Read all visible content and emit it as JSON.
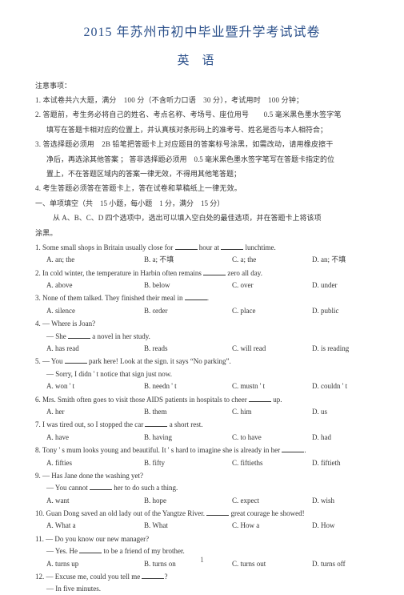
{
  "title_main": "2015 年苏州市初中毕业暨升学考试试卷",
  "title_sub": "英语",
  "notice_head": "注意事项：",
  "notice": [
    "1. 本试卷共六大题，满分　100 分（不含听力口语　30 分），考试用时　100 分钟；",
    "2. 答题前，考生务必将自己的姓名、考点名称、考场号、座位用号　　0.5 毫米黑色墨水签字笔",
    "填写在答题卡相对应的位置上，并认真核对条形码上的准考号、姓名是否与本人相符合；",
    "3. 答选择题必须用　2B 铅笔把答题卡上对应题目的答案标号涂黑，如需改动，请用橡皮擦干",
    "净后，再选涂其他答案 ； 答非选择题必须用　0.5 毫米黑色墨水签字笔写在答题卡指定的位",
    "置上，不在答题区域内的答案一律无效，不得用其他笔答题；",
    "4. 考生答题必须答在答题卡上，答在试卷和草稿纸上一律无效。"
  ],
  "section1": "一、单项填空（共　15 小题，每小题　1 分，满分　15 分）",
  "section1_sub": "从 A、B、C、D 四个选项中，选出可以填入空白处的最佳选项，并在答题卡上将该项",
  "section1_sub2": "涂黑。",
  "q": [
    {
      "n": "1.",
      "t": "Some small shops in Britain usually close for",
      "t2": "hour at",
      "t3": "lunchtime.",
      "A": "A. an; the",
      "B": "B. a; 不填",
      "C": "C. a; the",
      "D": "D. an; 不填"
    },
    {
      "n": "2.",
      "t": "In cold winter, the temperature in Harbin often remains",
      "t2": "zero all day.",
      "A": "A. above",
      "B": "B. below",
      "C": "C. over",
      "D": "D. under"
    },
    {
      "n": "3.",
      "t": "None of them talked. They finished their meal in",
      "t2": ".",
      "A": "A. silence",
      "B": "B. order",
      "C": "C. place",
      "D": "D. public"
    },
    {
      "n": "4.",
      "t": "— Where is Joan?",
      "s": "— She",
      "s2": "a novel in her study.",
      "A": "A. has read",
      "B": "B. reads",
      "C": "C. will read",
      "D": "D. is reading"
    },
    {
      "n": "5.",
      "t": "— You",
      "t2": "park here! Look at the sign. it says",
      "t3": "“No parking”.",
      "s": "— Sorry, I didn ' t notice that sign just now.",
      "A": "A. won ' t",
      "B": "B. needn ' t",
      "C": "C. mustn ' t",
      "D": "D. couldn ' t"
    },
    {
      "n": "6.",
      "t": "Mrs. Smith often goes to visit those AIDS patients in hospitals to cheer",
      "t2": "up.",
      "A": "A. her",
      "B": "B. them",
      "C": "C. him",
      "D": "D. us"
    },
    {
      "n": "7.",
      "t": "I was tired out, so I stopped the car",
      "t2": "a short rest.",
      "A": "A. have",
      "B": "B. having",
      "C": "C. to have",
      "D": "D. had"
    },
    {
      "n": "8.",
      "t": "Tony ' s mum looks young and beautiful. It ' s hard to imagine she is already in her",
      "t2": ".",
      "A": "A. fifties",
      "B": "B. fifty",
      "C": "C. fiftieths",
      "D": "D. fiftieth"
    },
    {
      "n": "9.",
      "t": "— Has Jane done the washing yet?",
      "s": "— You cannot",
      "s2": "her to do such a thing.",
      "A": "A. want",
      "B": "B. hope",
      "C": "C. expect",
      "D": "D. wish"
    },
    {
      "n": "10.",
      "t": "Guan Dong saved an old lady out of the Yangtze River.",
      "t2": "great courage he showed!",
      "A": "A. What a",
      "B": "B. What",
      "C": "C. How a",
      "D": "D. How"
    },
    {
      "n": "11.",
      "t": "— Do you know our new manager?",
      "s": "— Yes. He",
      "s2": "to be a friend of my brother.",
      "A": "A. turns up",
      "B": "B. turns on",
      "C": "C. turns out",
      "D": "D. turns off"
    },
    {
      "n": "12.",
      "t": "— Excuse me, could you tell me",
      "t2": "?",
      "s": "— In five minutes."
    }
  ],
  "page_num": "1"
}
